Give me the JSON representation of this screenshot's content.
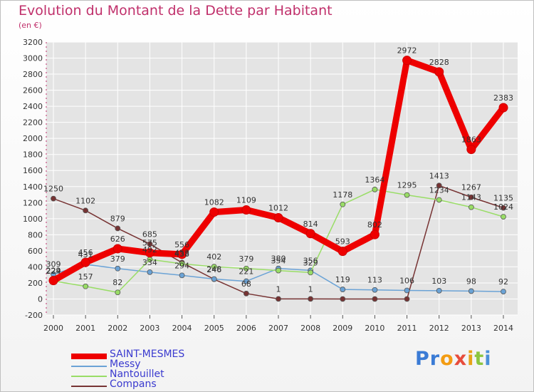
{
  "title": "Evolution du Montant de la Dette par Habitant",
  "subtitle": "(en €)",
  "logo_text": "Proxiti",
  "colors": {
    "title": "#c0306b",
    "axis_text": "#333333",
    "grid": "#ffffff",
    "plot_bg": "#e4e4e4"
  },
  "chart_data": {
    "type": "line",
    "title": "Evolution du Montant de la Dette par Habitant",
    "subtitle": "(en €)",
    "x": [
      2000,
      2001,
      2002,
      2003,
      2004,
      2005,
      2006,
      2007,
      2008,
      2009,
      2010,
      2011,
      2012,
      2013,
      2014
    ],
    "ylim": [
      -200,
      3200
    ],
    "ytick_step": 200,
    "grid": true,
    "legend_position": "bottom-left",
    "series": [
      {
        "name": "SAINT-MESMES",
        "color": "#ee0000",
        "values": [
          229,
          456,
          626,
          575,
          556,
          1082,
          1109,
          1012,
          814,
          593,
          802,
          2972,
          2828,
          1863,
          2383
        ],
        "labels": [
          "229",
          "456",
          "626",
          "575",
          "556",
          "1082",
          "1109",
          "1012",
          "814",
          "593",
          "802",
          "2972",
          "2828",
          "1863",
          "2383"
        ]
      },
      {
        "name": "Messy",
        "color": "#6ba3d6",
        "values": [
          309,
          431,
          379,
          334,
          294,
          248,
          221,
          380,
          356,
          119,
          113,
          106,
          103,
          98,
          92
        ],
        "labels": [
          "309",
          "431",
          "379",
          "334",
          "294",
          "248",
          "221",
          "380",
          "356",
          "119",
          "113",
          "106",
          "103",
          "98",
          "92"
        ]
      },
      {
        "name": "Nantouillet",
        "color": "#99dd66",
        "values": [
          224,
          157,
          82,
          492,
          438,
          402,
          379,
          354,
          329,
          1178,
          1364,
          1295,
          1234,
          1143,
          1024
        ],
        "labels": [
          "224",
          "157",
          "82",
          "492",
          "438",
          "402",
          "379",
          "354",
          "329",
          "1178",
          "1364",
          "1295",
          "1234",
          "1143",
          "1024"
        ]
      },
      {
        "name": "Compans",
        "color": "#773333",
        "values": [
          1250,
          1102,
          879,
          685,
          453,
          246,
          68,
          1,
          1,
          0,
          0,
          0,
          1413,
          1267,
          1135
        ],
        "labels": [
          "1250",
          "1102",
          "879",
          "685",
          "453",
          "246",
          "68",
          "1",
          "1",
          "",
          "",
          "",
          "1413",
          "1267",
          "1135"
        ]
      }
    ]
  }
}
